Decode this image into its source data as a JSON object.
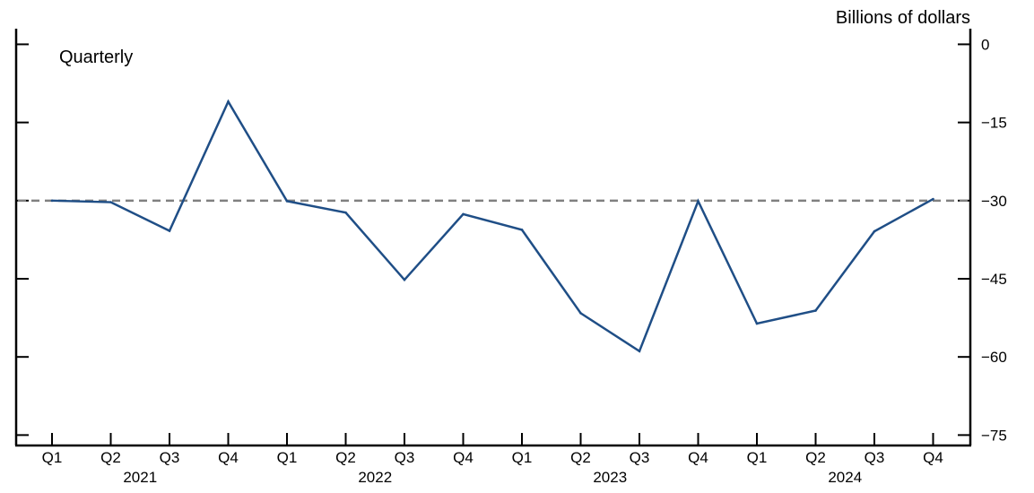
{
  "chart_data": {
    "type": "line",
    "y_unit_label": "Billions of dollars",
    "frequency_label": "Quarterly",
    "ylim": [
      -77,
      3
    ],
    "y_ticks": [
      {
        "value": 0,
        "label": "0"
      },
      {
        "value": -15,
        "label": "−15"
      },
      {
        "value": -30,
        "label": "−30"
      },
      {
        "value": -45,
        "label": "−45"
      },
      {
        "value": -60,
        "label": "−60"
      },
      {
        "value": -75,
        "label": "−75"
      }
    ],
    "quarter_labels": [
      "Q1",
      "Q2",
      "Q3",
      "Q4",
      "Q1",
      "Q2",
      "Q3",
      "Q4",
      "Q1",
      "Q2",
      "Q3",
      "Q4",
      "Q1",
      "Q2",
      "Q3",
      "Q4"
    ],
    "year_labels": [
      {
        "label": "2021",
        "start_index": 0
      },
      {
        "label": "2022",
        "start_index": 4
      },
      {
        "label": "2023",
        "start_index": 8
      },
      {
        "label": "2024",
        "start_index": 12
      }
    ],
    "reference_line": {
      "value": -30,
      "style": "dashed",
      "color": "#808080"
    },
    "series": [
      {
        "color": "#1f4e86",
        "values": [
          -30.0,
          -30.3,
          -35.8,
          -11.0,
          -30.1,
          -32.3,
          -45.2,
          -32.6,
          -35.6,
          -51.6,
          -58.9,
          -30.1,
          -53.6,
          -51.1,
          -35.9,
          -29.7
        ]
      }
    ],
    "grid": false,
    "legend": "none"
  }
}
